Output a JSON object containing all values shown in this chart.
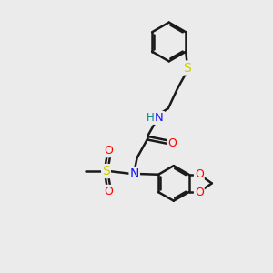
{
  "background_color": "#ebebeb",
  "bond_color": "#1a1a1a",
  "bond_width": 1.8,
  "atom_colors": {
    "N": "#1414ff",
    "H": "#008888",
    "O": "#ff0000",
    "S": "#cccc00",
    "C": "#1a1a1a"
  },
  "font_size": 9,
  "fig_size": [
    3.0,
    3.0
  ],
  "dpi": 100
}
